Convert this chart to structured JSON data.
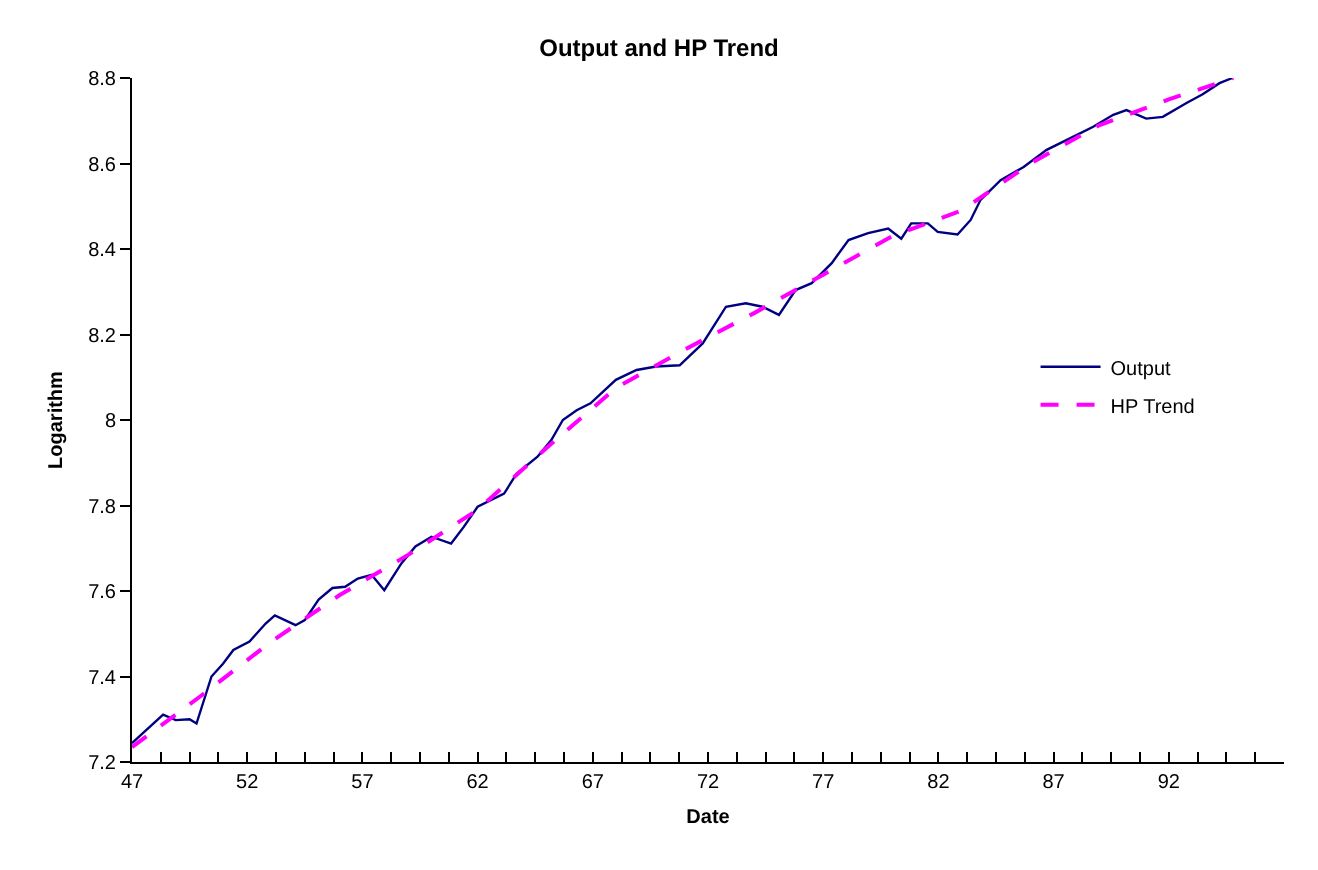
{
  "chart_data": {
    "type": "line",
    "title": "Output and HP Trend",
    "xlabel": "Date",
    "ylabel": "Logarithm",
    "xlim": [
      47,
      97
    ],
    "xticks": [
      47,
      {
        "value": 48.25,
        "label": null
      },
      {
        "value": 49.5,
        "label": null
      },
      {
        "value": 50.75,
        "label": null
      },
      52,
      {
        "value": 53.25,
        "label": null
      },
      {
        "value": 54.5,
        "label": null
      },
      {
        "value": 55.75,
        "label": null
      },
      57,
      {
        "value": 58.25,
        "label": null
      },
      {
        "value": 59.5,
        "label": null
      },
      {
        "value": 60.75,
        "label": null
      },
      62,
      {
        "value": 63.25,
        "label": null
      },
      {
        "value": 64.5,
        "label": null
      },
      {
        "value": 65.75,
        "label": null
      },
      67,
      {
        "value": 68.25,
        "label": null
      },
      {
        "value": 69.5,
        "label": null
      },
      {
        "value": 70.75,
        "label": null
      },
      72,
      {
        "value": 73.25,
        "label": null
      },
      {
        "value": 74.5,
        "label": null
      },
      {
        "value": 75.75,
        "label": null
      },
      77,
      {
        "value": 78.25,
        "label": null
      },
      {
        "value": 79.5,
        "label": null
      },
      {
        "value": 80.75,
        "label": null
      },
      82,
      {
        "value": 83.25,
        "label": null
      },
      {
        "value": 84.5,
        "label": null
      },
      {
        "value": 85.75,
        "label": null
      },
      87,
      {
        "value": 88.25,
        "label": null
      },
      {
        "value": 89.5,
        "label": null
      },
      {
        "value": 90.75,
        "label": null
      },
      92,
      {
        "value": 93.25,
        "label": null
      },
      {
        "value": 94.5,
        "label": null
      },
      {
        "value": 95.75,
        "label": null
      }
    ],
    "ylim": [
      7.2,
      8.8
    ],
    "yticks": [
      7.2,
      7.4,
      7.6,
      7.8,
      8,
      8.2,
      8.4,
      8.6,
      8.8
    ],
    "grid": false,
    "legend": "right",
    "series": [
      {
        "name": "Output",
        "color": "#000080",
        "line_style": "solid",
        "x": [
          47.0,
          48.35,
          48.9,
          49.5,
          49.8,
          50.45,
          50.95,
          51.4,
          52.1,
          52.8,
          53.2,
          54.1,
          54.5,
          55.1,
          55.7,
          56.25,
          56.8,
          57.4,
          57.95,
          58.7,
          59.3,
          60.0,
          60.85,
          61.4,
          62.0,
          63.15,
          63.7,
          64.6,
          65.2,
          65.7,
          66.3,
          66.9,
          68.0,
          68.9,
          69.75,
          70.77,
          71.77,
          72.78,
          73.64,
          74.36,
          75.08,
          75.8,
          76.5,
          77.37,
          78.1,
          78.95,
          79.82,
          80.39,
          80.82,
          81.54,
          81.97,
          82.83,
          83.4,
          83.83,
          84.7,
          85.7,
          86.7,
          87.86,
          88.72,
          89.59,
          90.16,
          91.02,
          91.74,
          92.75,
          93.47,
          94.2,
          94.76
        ],
        "values": [
          7.244,
          7.311,
          7.298,
          7.3,
          7.29,
          7.4,
          7.43,
          7.462,
          7.482,
          7.524,
          7.543,
          7.52,
          7.532,
          7.58,
          7.607,
          7.61,
          7.629,
          7.638,
          7.602,
          7.665,
          7.704,
          7.727,
          7.711,
          7.75,
          7.797,
          7.828,
          7.875,
          7.914,
          7.953,
          8.0,
          8.023,
          8.039,
          8.094,
          8.117,
          8.125,
          8.128,
          8.179,
          8.265,
          8.273,
          8.265,
          8.246,
          8.304,
          8.32,
          8.367,
          8.421,
          8.437,
          8.448,
          8.424,
          8.46,
          8.46,
          8.44,
          8.434,
          8.468,
          8.515,
          8.561,
          8.592,
          8.632,
          8.663,
          8.686,
          8.714,
          8.725,
          8.705,
          8.709,
          8.741,
          8.762,
          8.788,
          8.8
        ]
      },
      {
        "name": "HP Trend",
        "color": "#ff00ff",
        "line_style": "dashed",
        "x": [
          47,
          50,
          53,
          56,
          59,
          62,
          65,
          68,
          71,
          74,
          77,
          80,
          83,
          86,
          89,
          92,
          94.8
        ],
        "values": [
          7.235,
          7.355,
          7.48,
          7.59,
          7.685,
          7.79,
          7.935,
          8.075,
          8.165,
          8.25,
          8.34,
          8.43,
          8.49,
          8.6,
          8.69,
          8.75,
          8.8
        ]
      }
    ]
  }
}
